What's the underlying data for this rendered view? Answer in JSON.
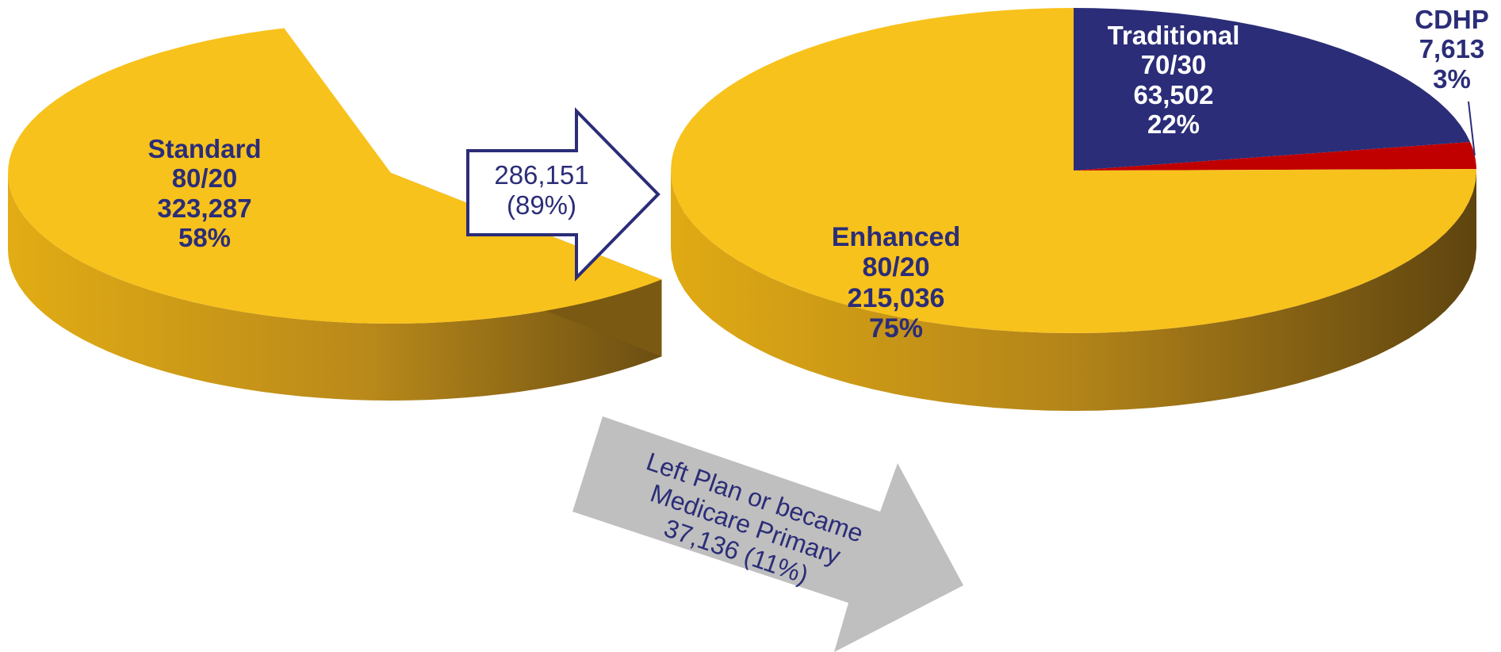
{
  "chart_data": [
    {
      "type": "pie",
      "slices": [
        {
          "label": "Standard",
          "plan": "80/20",
          "value": 323287,
          "value_label": "323,287",
          "pct_label": "58%",
          "color": "#f8c21c"
        },
        {
          "label": "",
          "value": 234095,
          "color": "",
          "exploded_missing": true
        }
      ]
    },
    {
      "type": "pie",
      "slices": [
        {
          "label": "Enhanced",
          "plan": "80/20",
          "value": 215036,
          "value_label": "215,036",
          "pct_label": "75%",
          "color": "#f8c21c"
        },
        {
          "label": "Traditional",
          "plan": "70/30",
          "value": 63502,
          "value_label": "63,502",
          "pct_label": "22%",
          "color": "#2b2d78"
        },
        {
          "label": "CDHP",
          "value": 7613,
          "value_label": "7,613",
          "pct_label": "3%",
          "color": "#c00000"
        }
      ]
    }
  ],
  "arrows": {
    "flow": {
      "line1": "286,151",
      "line2": "(89%)",
      "outline_color": "#2b2d78"
    },
    "left_plan": {
      "line1": "Left Plan or became",
      "line2": "Medicare Primary",
      "line3": "37,136 (11%)",
      "fill_color": "#bfbfbf"
    }
  },
  "colors": {
    "gold": "#f8c21c",
    "gold_dark": "#6f5212",
    "navy": "#2b2d78",
    "red": "#c00000"
  }
}
